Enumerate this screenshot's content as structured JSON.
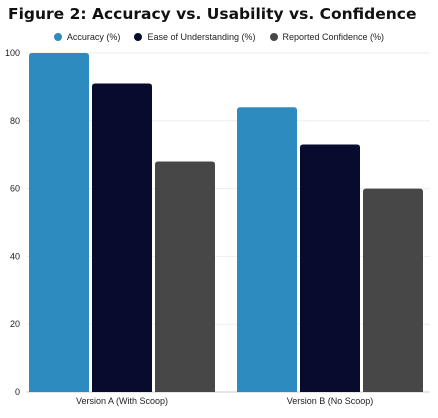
{
  "title": "Figure 2: Accuracy vs. Usability vs. Confidence",
  "colors": [
    "#2E8BC0",
    "#070B2E",
    "#474747"
  ],
  "chart_data": {
    "type": "bar",
    "categories": [
      "Version A (With Scoop)",
      "Version B (No Scoop)"
    ],
    "series": [
      {
        "name": "Accuracy (%)",
        "values": [
          100,
          84
        ]
      },
      {
        "name": "Ease of Understanding (%)",
        "values": [
          91,
          73
        ]
      },
      {
        "name": "Reported Confidence (%)",
        "values": [
          68,
          60
        ]
      }
    ],
    "ylim": [
      0,
      100
    ],
    "yticks": [
      "0",
      "20",
      "40",
      "60",
      "80",
      "100"
    ],
    "grid": true,
    "legend": "top-center"
  }
}
